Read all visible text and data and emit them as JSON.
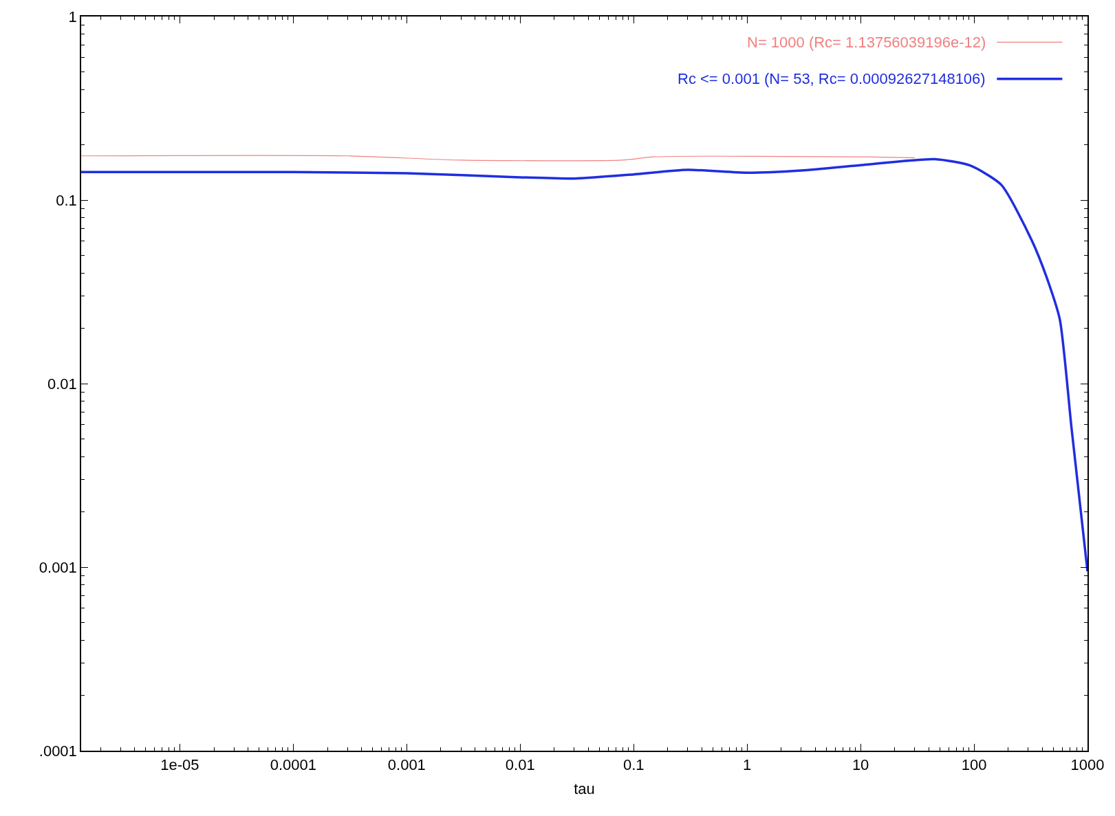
{
  "chart_data": {
    "type": "line",
    "xlabel": "tau",
    "log": "xy",
    "xlim": [
      1.35e-06,
      1000
    ],
    "ylim": [
      0.0001,
      1
    ],
    "xticks": [
      {
        "value": 1e-05,
        "label": "1e-05"
      },
      0.0001,
      0.001,
      0.01,
      0.1,
      1,
      10,
      100,
      1000
    ],
    "yticks": [
      {
        "value": 0.0001,
        "label": ".0001"
      },
      0.001,
      0.01,
      0.1,
      1
    ],
    "grid": false,
    "legend": "top right",
    "marker": "none",
    "line_style": "solid",
    "series": [
      {
        "name": "N= 1000 (Rc= 1.13756039196e-12)",
        "color": "#f08080",
        "x": [
          1.35e-06,
          0.0003,
          0.003,
          0.08,
          0.15,
          10,
          30
        ],
        "values": [
          0.174,
          0.174,
          0.165,
          0.165,
          0.172,
          0.172,
          0.17
        ]
      },
      {
        "name": "Rc <= 0.001 (N= 53, Rc= 0.00092627148106)",
        "color": "#1f2ee0",
        "x": [
          1.35e-06,
          0.0001,
          0.001,
          0.01,
          0.03,
          0.1,
          0.3,
          1,
          3,
          10,
          45,
          93,
          174,
          324,
          436,
          570,
          724,
          1000
        ],
        "values": [
          0.142,
          0.142,
          0.14,
          0.133,
          0.131,
          0.138,
          0.146,
          0.141,
          0.145,
          0.155,
          0.167,
          0.154,
          0.121,
          0.06,
          0.038,
          0.0224,
          0.0057,
          0.00095
        ]
      }
    ]
  }
}
